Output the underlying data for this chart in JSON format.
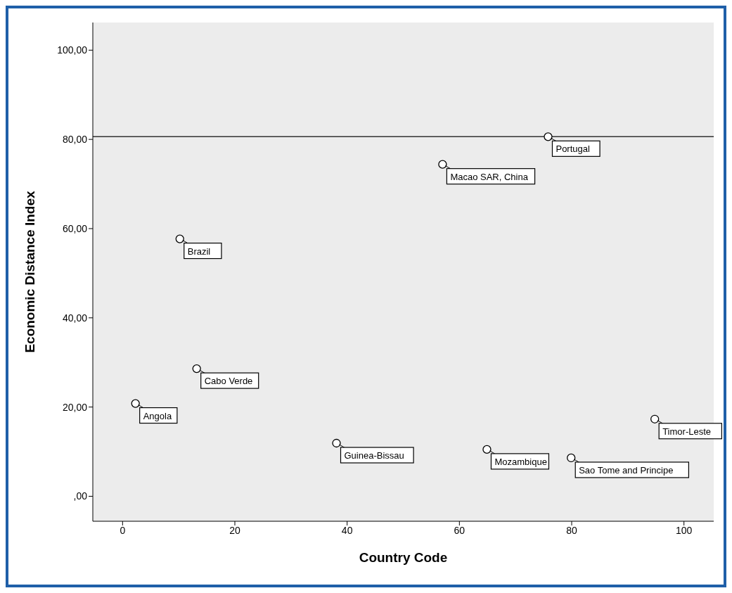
{
  "chart_data": {
    "type": "scatter",
    "xlabel": "Country Code",
    "ylabel": "Economic Distance Index",
    "x": [
      2.3,
      10.2,
      13.2,
      38.1,
      57,
      64.9,
      75.8,
      79.9,
      94.8
    ],
    "values": [
      20.8,
      57.7,
      28.6,
      11.9,
      74.4,
      10.5,
      80.6,
      8.6,
      17.3
    ],
    "color": "#000000",
    "marker": "circle",
    "grid": false,
    "legend": false,
    "xlim": [
      -5.3,
      105.3
    ],
    "xticks": [
      0,
      20,
      40,
      60,
      80,
      100
    ],
    "ylim": [
      -5.6,
      106.2
    ],
    "yticks": [
      {
        "value": 0,
        "label": ",00"
      },
      {
        "value": 20,
        "label": "20,00"
      },
      {
        "value": 40,
        "label": "40,00"
      },
      {
        "value": 60,
        "label": "60,00"
      },
      {
        "value": 80,
        "label": "80,00"
      },
      {
        "value": 100,
        "label": "100,00"
      }
    ],
    "ref_lines": [
      {
        "axis": "y",
        "value": 80.6,
        "color": "#333333"
      }
    ],
    "annotations": [
      {
        "text": "Angola",
        "x": 2.3,
        "y": 20.8
      },
      {
        "text": "Brazil",
        "x": 10.2,
        "y": 57.7
      },
      {
        "text": "Cabo Verde",
        "x": 13.2,
        "y": 28.6
      },
      {
        "text": "Guinea-Bissau",
        "x": 38.1,
        "y": 11.9
      },
      {
        "text": "Macao SAR, China",
        "x": 57,
        "y": 74.4
      },
      {
        "text": "Mozambique",
        "x": 64.9,
        "y": 10.5
      },
      {
        "text": "Portugal",
        "x": 75.8,
        "y": 80.6
      },
      {
        "text": "Sao Tome and Principe",
        "x": 79.9,
        "y": 8.6
      },
      {
        "text": "Timor-Leste",
        "x": 94.8,
        "y": 17.3
      }
    ]
  }
}
